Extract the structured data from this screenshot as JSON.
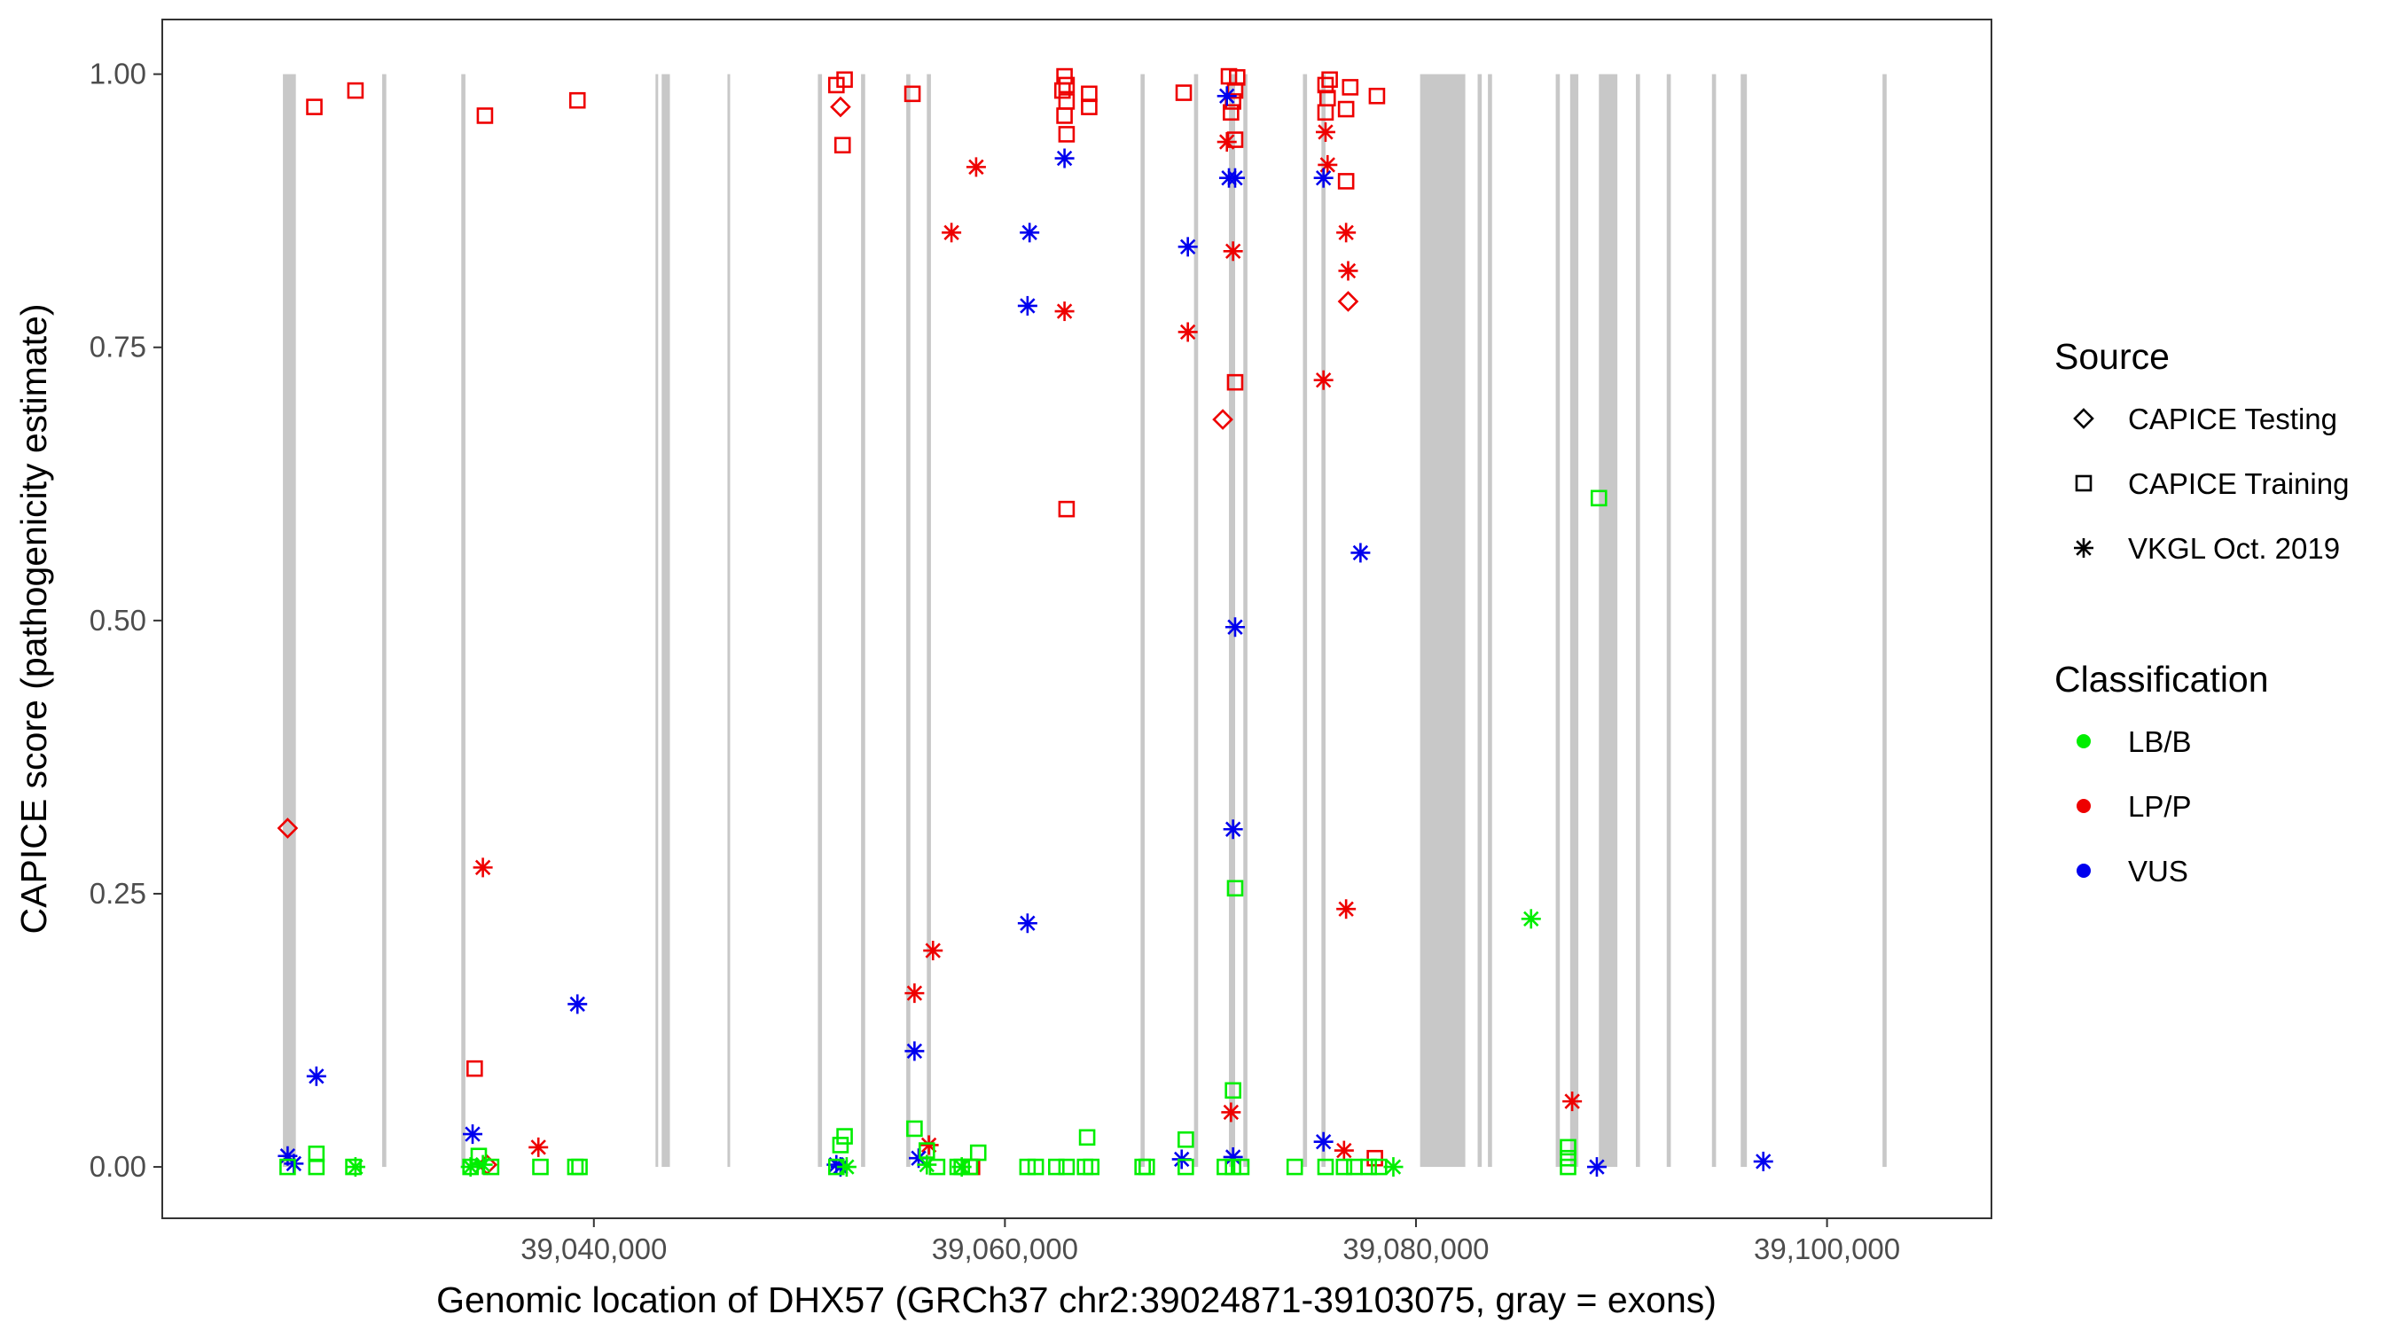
{
  "chart_data": {
    "type": "scatter",
    "xlabel": "Genomic location of DHX57 (GRCh37 chr2:39024871-39103075, gray = exons)",
    "ylabel": "CAPICE score (pathogenicity estimate)",
    "xlim": [
      39019000,
      39108000
    ],
    "ylim": [
      -0.047,
      1.05
    ],
    "x_ticks": [
      39040000,
      39060000,
      39080000,
      39100000
    ],
    "x_tick_labels": [
      "39,040,000",
      "39,060,000",
      "39,080,000",
      "39,100,000"
    ],
    "y_ticks": [
      0,
      0.25,
      0.5,
      0.75,
      1
    ],
    "y_tick_labels": [
      "0.00",
      "0.25",
      "0.50",
      "0.75",
      "1.00"
    ],
    "grid": false,
    "exon_color": "#c8c8c8",
    "exons": [
      [
        39024871,
        39025500
      ],
      [
        39029700,
        39029900
      ],
      [
        39033550,
        39033750
      ],
      [
        39043000,
        39043100
      ],
      [
        39043300,
        39043700
      ],
      [
        39046500,
        39046600
      ],
      [
        39050900,
        39051100
      ],
      [
        39053000,
        39053200
      ],
      [
        39055200,
        39055400
      ],
      [
        39056200,
        39056400
      ],
      [
        39066600,
        39066800
      ],
      [
        39069200,
        39069400
      ],
      [
        39070900,
        39071200
      ],
      [
        39071600,
        39071800
      ],
      [
        39074500,
        39074700
      ],
      [
        39075400,
        39075600
      ],
      [
        39080200,
        39082400
      ],
      [
        39083000,
        39083200
      ],
      [
        39083500,
        39083700
      ],
      [
        39086800,
        39087000
      ],
      [
        39087500,
        39087900
      ],
      [
        39088900,
        39089800
      ],
      [
        39090700,
        39090900
      ],
      [
        39092200,
        39092400
      ],
      [
        39094400,
        39094600
      ],
      [
        39095800,
        39096100
      ],
      [
        39102700,
        39102900
      ]
    ],
    "legend": {
      "placement": "right",
      "source_title": "Source",
      "source_entries": [
        {
          "label": "CAPICE Testing",
          "shape": "diamond"
        },
        {
          "label": "CAPICE Training",
          "shape": "square"
        },
        {
          "label": "VKGL Oct. 2019",
          "shape": "asterisk"
        }
      ],
      "class_title": "Classification",
      "class_entries": [
        {
          "label": "LB/B",
          "color": "#00ee00"
        },
        {
          "label": "LP/P",
          "color": "#ee0000"
        },
        {
          "label": "VUS",
          "color": "#0000ee"
        }
      ]
    },
    "series": [
      {
        "source": "CAPICE Training",
        "classification": "LP/P",
        "points": [
          [
            39026400,
            0.97
          ],
          [
            39028400,
            0.985
          ],
          [
            39034700,
            0.962
          ],
          [
            39039200,
            0.976
          ],
          [
            39051800,
            0.99
          ],
          [
            39052200,
            0.995
          ],
          [
            39052100,
            0.935
          ],
          [
            39055500,
            0.982
          ],
          [
            39062900,
            0.998
          ],
          [
            39063000,
            0.99
          ],
          [
            39062800,
            0.985
          ],
          [
            39063000,
            0.975
          ],
          [
            39062900,
            0.962
          ],
          [
            39063000,
            0.945
          ],
          [
            39064100,
            0.982
          ],
          [
            39064100,
            0.97
          ],
          [
            39068700,
            0.983
          ],
          [
            39070900,
            0.998
          ],
          [
            39071300,
            0.997
          ],
          [
            39071200,
            0.985
          ],
          [
            39071100,
            0.975
          ],
          [
            39071000,
            0.965
          ],
          [
            39071200,
            0.94
          ],
          [
            39071200,
            0.718
          ],
          [
            39075800,
            0.995
          ],
          [
            39075600,
            0.99
          ],
          [
            39075700,
            0.978
          ],
          [
            39075600,
            0.965
          ],
          [
            39076800,
            0.988
          ],
          [
            39076600,
            0.968
          ],
          [
            39078100,
            0.98
          ],
          [
            39076600,
            0.902
          ],
          [
            39063000,
            0.602
          ],
          [
            39034200,
            0.09
          ],
          [
            39058400,
            0.0
          ],
          [
            39078000,
            0.008
          ]
        ]
      },
      {
        "source": "CAPICE Testing",
        "classification": "LP/P",
        "points": [
          [
            39052000,
            0.97
          ],
          [
            39070600,
            0.684
          ],
          [
            39076700,
            0.792
          ],
          [
            39025100,
            0.31
          ],
          [
            39034800,
            0.002
          ]
        ]
      },
      {
        "source": "VKGL Oct. 2019",
        "classification": "LP/P",
        "points": [
          [
            39058600,
            0.915
          ],
          [
            39057400,
            0.855
          ],
          [
            39062900,
            0.783
          ],
          [
            39070800,
            0.938
          ],
          [
            39071100,
            0.838
          ],
          [
            39068900,
            0.764
          ],
          [
            39075600,
            0.947
          ],
          [
            39075700,
            0.917
          ],
          [
            39076600,
            0.855
          ],
          [
            39076700,
            0.82
          ],
          [
            39075500,
            0.72
          ],
          [
            39076600,
            0.236
          ],
          [
            39034600,
            0.274
          ],
          [
            39037300,
            0.018
          ],
          [
            39056500,
            0.198
          ],
          [
            39055600,
            0.159
          ],
          [
            39071000,
            0.05
          ],
          [
            39087600,
            0.06
          ],
          [
            39076500,
            0.015
          ],
          [
            39056300,
            0.02
          ]
        ]
      },
      {
        "source": "VKGL Oct. 2019",
        "classification": "VUS",
        "points": [
          [
            39062900,
            0.923
          ],
          [
            39061200,
            0.855
          ],
          [
            39061100,
            0.788
          ],
          [
            39068900,
            0.842
          ],
          [
            39070800,
            0.98
          ],
          [
            39070900,
            0.905
          ],
          [
            39071200,
            0.905
          ],
          [
            39075500,
            0.905
          ],
          [
            39077300,
            0.562
          ],
          [
            39071200,
            0.494
          ],
          [
            39071100,
            0.309
          ],
          [
            39061100,
            0.223
          ],
          [
            39055600,
            0.106
          ],
          [
            39026500,
            0.083
          ],
          [
            39039200,
            0.149
          ],
          [
            39034100,
            0.03
          ],
          [
            39025100,
            0.01
          ],
          [
            39025400,
            0.003
          ],
          [
            39052000,
            0.0
          ],
          [
            39051800,
            0.002
          ],
          [
            39055800,
            0.008
          ],
          [
            39068600,
            0.007
          ],
          [
            39071100,
            0.009
          ],
          [
            39075500,
            0.023
          ],
          [
            39088800,
            0.0
          ],
          [
            39096900,
            0.005
          ]
        ]
      },
      {
        "source": "VKGL Oct. 2019",
        "classification": "LB/B",
        "points": [
          [
            39085600,
            0.227
          ],
          [
            39028400,
            0.0
          ],
          [
            39034000,
            0.0
          ],
          [
            39034600,
            0.002
          ],
          [
            39056200,
            0.002
          ],
          [
            39057900,
            0.0
          ],
          [
            39078900,
            0.0
          ],
          [
            39052300,
            0.0
          ]
        ]
      },
      {
        "source": "CAPICE Training",
        "classification": "LB/B",
        "points": [
          [
            39088900,
            0.612
          ],
          [
            39071200,
            0.255
          ],
          [
            39071100,
            0.07
          ],
          [
            39055600,
            0.035
          ],
          [
            39052200,
            0.028
          ],
          [
            39052000,
            0.02
          ],
          [
            39064000,
            0.027
          ],
          [
            39068800,
            0.025
          ],
          [
            39087400,
            0.018
          ],
          [
            39087400,
            0.008
          ],
          [
            39056200,
            0.015
          ],
          [
            39058700,
            0.013
          ],
          [
            39026500,
            0.012
          ],
          [
            39034400,
            0.01
          ],
          [
            39025100,
            0.0
          ],
          [
            39026500,
            0.0
          ],
          [
            39028300,
            0.0
          ],
          [
            39034000,
            0.0
          ],
          [
            39035000,
            0.0
          ],
          [
            39037400,
            0.0
          ],
          [
            39039100,
            0.0
          ],
          [
            39039300,
            0.0
          ],
          [
            39051800,
            0.0
          ],
          [
            39056700,
            0.0
          ],
          [
            39057700,
            0.0
          ],
          [
            39057900,
            0.0
          ],
          [
            39058300,
            0.0
          ],
          [
            39061100,
            0.0
          ],
          [
            39061500,
            0.0
          ],
          [
            39062500,
            0.0
          ],
          [
            39063000,
            0.0
          ],
          [
            39063900,
            0.0
          ],
          [
            39064200,
            0.0
          ],
          [
            39066700,
            0.0
          ],
          [
            39066900,
            0.0
          ],
          [
            39068800,
            0.0
          ],
          [
            39070700,
            0.0
          ],
          [
            39071100,
            0.0
          ],
          [
            39071500,
            0.0
          ],
          [
            39074100,
            0.0
          ],
          [
            39075600,
            0.0
          ],
          [
            39076500,
            0.0
          ],
          [
            39077000,
            0.0
          ],
          [
            39077700,
            0.0
          ],
          [
            39078200,
            0.0
          ],
          [
            39087400,
            0.0
          ]
        ]
      }
    ]
  }
}
